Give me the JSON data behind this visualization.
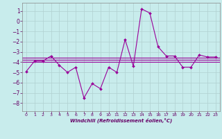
{
  "xlabel": "Windchill (Refroidissement éolien,°C)",
  "background_color": "#c8ecec",
  "grid_color": "#b0d0d0",
  "line_color": "#990099",
  "xlim": [
    -0.5,
    23.5
  ],
  "ylim": [
    -8.8,
    1.8
  ],
  "yticks": [
    1,
    0,
    -1,
    -2,
    -3,
    -4,
    -5,
    -6,
    -7,
    -8
  ],
  "xticks": [
    0,
    1,
    2,
    3,
    4,
    5,
    6,
    7,
    8,
    9,
    10,
    11,
    12,
    13,
    14,
    15,
    16,
    17,
    18,
    19,
    20,
    21,
    22,
    23
  ],
  "main_line": {
    "x": [
      0,
      1,
      2,
      3,
      4,
      5,
      6,
      7,
      8,
      9,
      10,
      11,
      12,
      13,
      14,
      15,
      16,
      17,
      18,
      19,
      20,
      21,
      22,
      23
    ],
    "y": [
      -4.9,
      -3.9,
      -3.9,
      -3.4,
      -4.3,
      -5.0,
      -4.5,
      -7.5,
      -6.1,
      -6.6,
      -4.5,
      -5.0,
      -1.8,
      -4.4,
      1.2,
      0.8,
      -2.5,
      -3.4,
      -3.4,
      -4.5,
      -4.5,
      -3.3,
      -3.5,
      -3.5
    ]
  },
  "hlines": [
    -3.55,
    -3.75,
    -4.0
  ],
  "spine_color": "#888888",
  "tick_color": "#660066",
  "xlabel_color": "#660066"
}
